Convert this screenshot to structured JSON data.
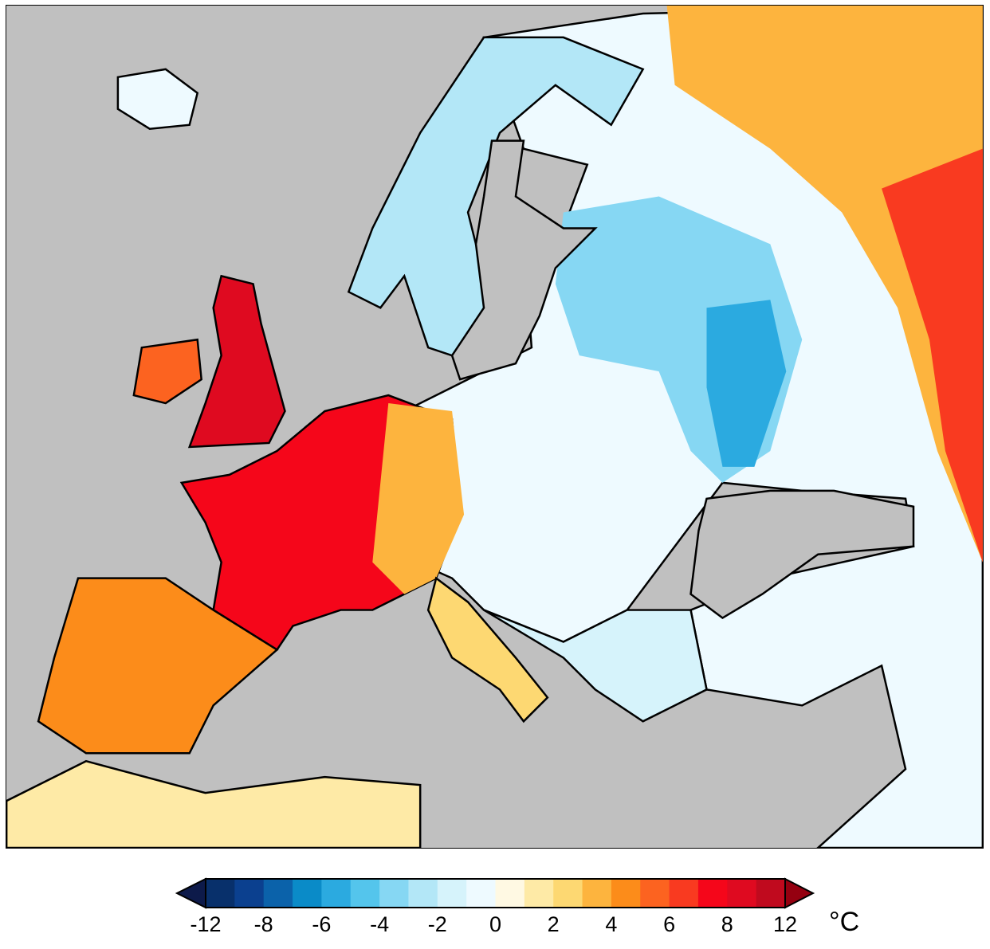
{
  "map": {
    "region": "Europe",
    "variable": "temperature anomaly",
    "sea_color": "#c0c0c0"
  },
  "colorbar": {
    "unit": "°C",
    "tick_labels": [
      "-12",
      "-8",
      "-6",
      "-4",
      "-2",
      "0",
      "2",
      "4",
      "6",
      "8",
      "12"
    ],
    "colors": [
      "#08306b",
      "#0b408f",
      "#0b62aa",
      "#0a8bc8",
      "#2baae0",
      "#54c5ec",
      "#86d7f3",
      "#b3e7f7",
      "#d6f3fb",
      "#eefaff",
      "#fff9e3",
      "#feeaa6",
      "#fdd872",
      "#fdb43e",
      "#fc8c1a",
      "#fc6320",
      "#f93a20",
      "#f5061a",
      "#df0a20",
      "#c00a1e"
    ],
    "extend_low_color": "#0d1a4a",
    "extend_high_color": "#950010"
  }
}
